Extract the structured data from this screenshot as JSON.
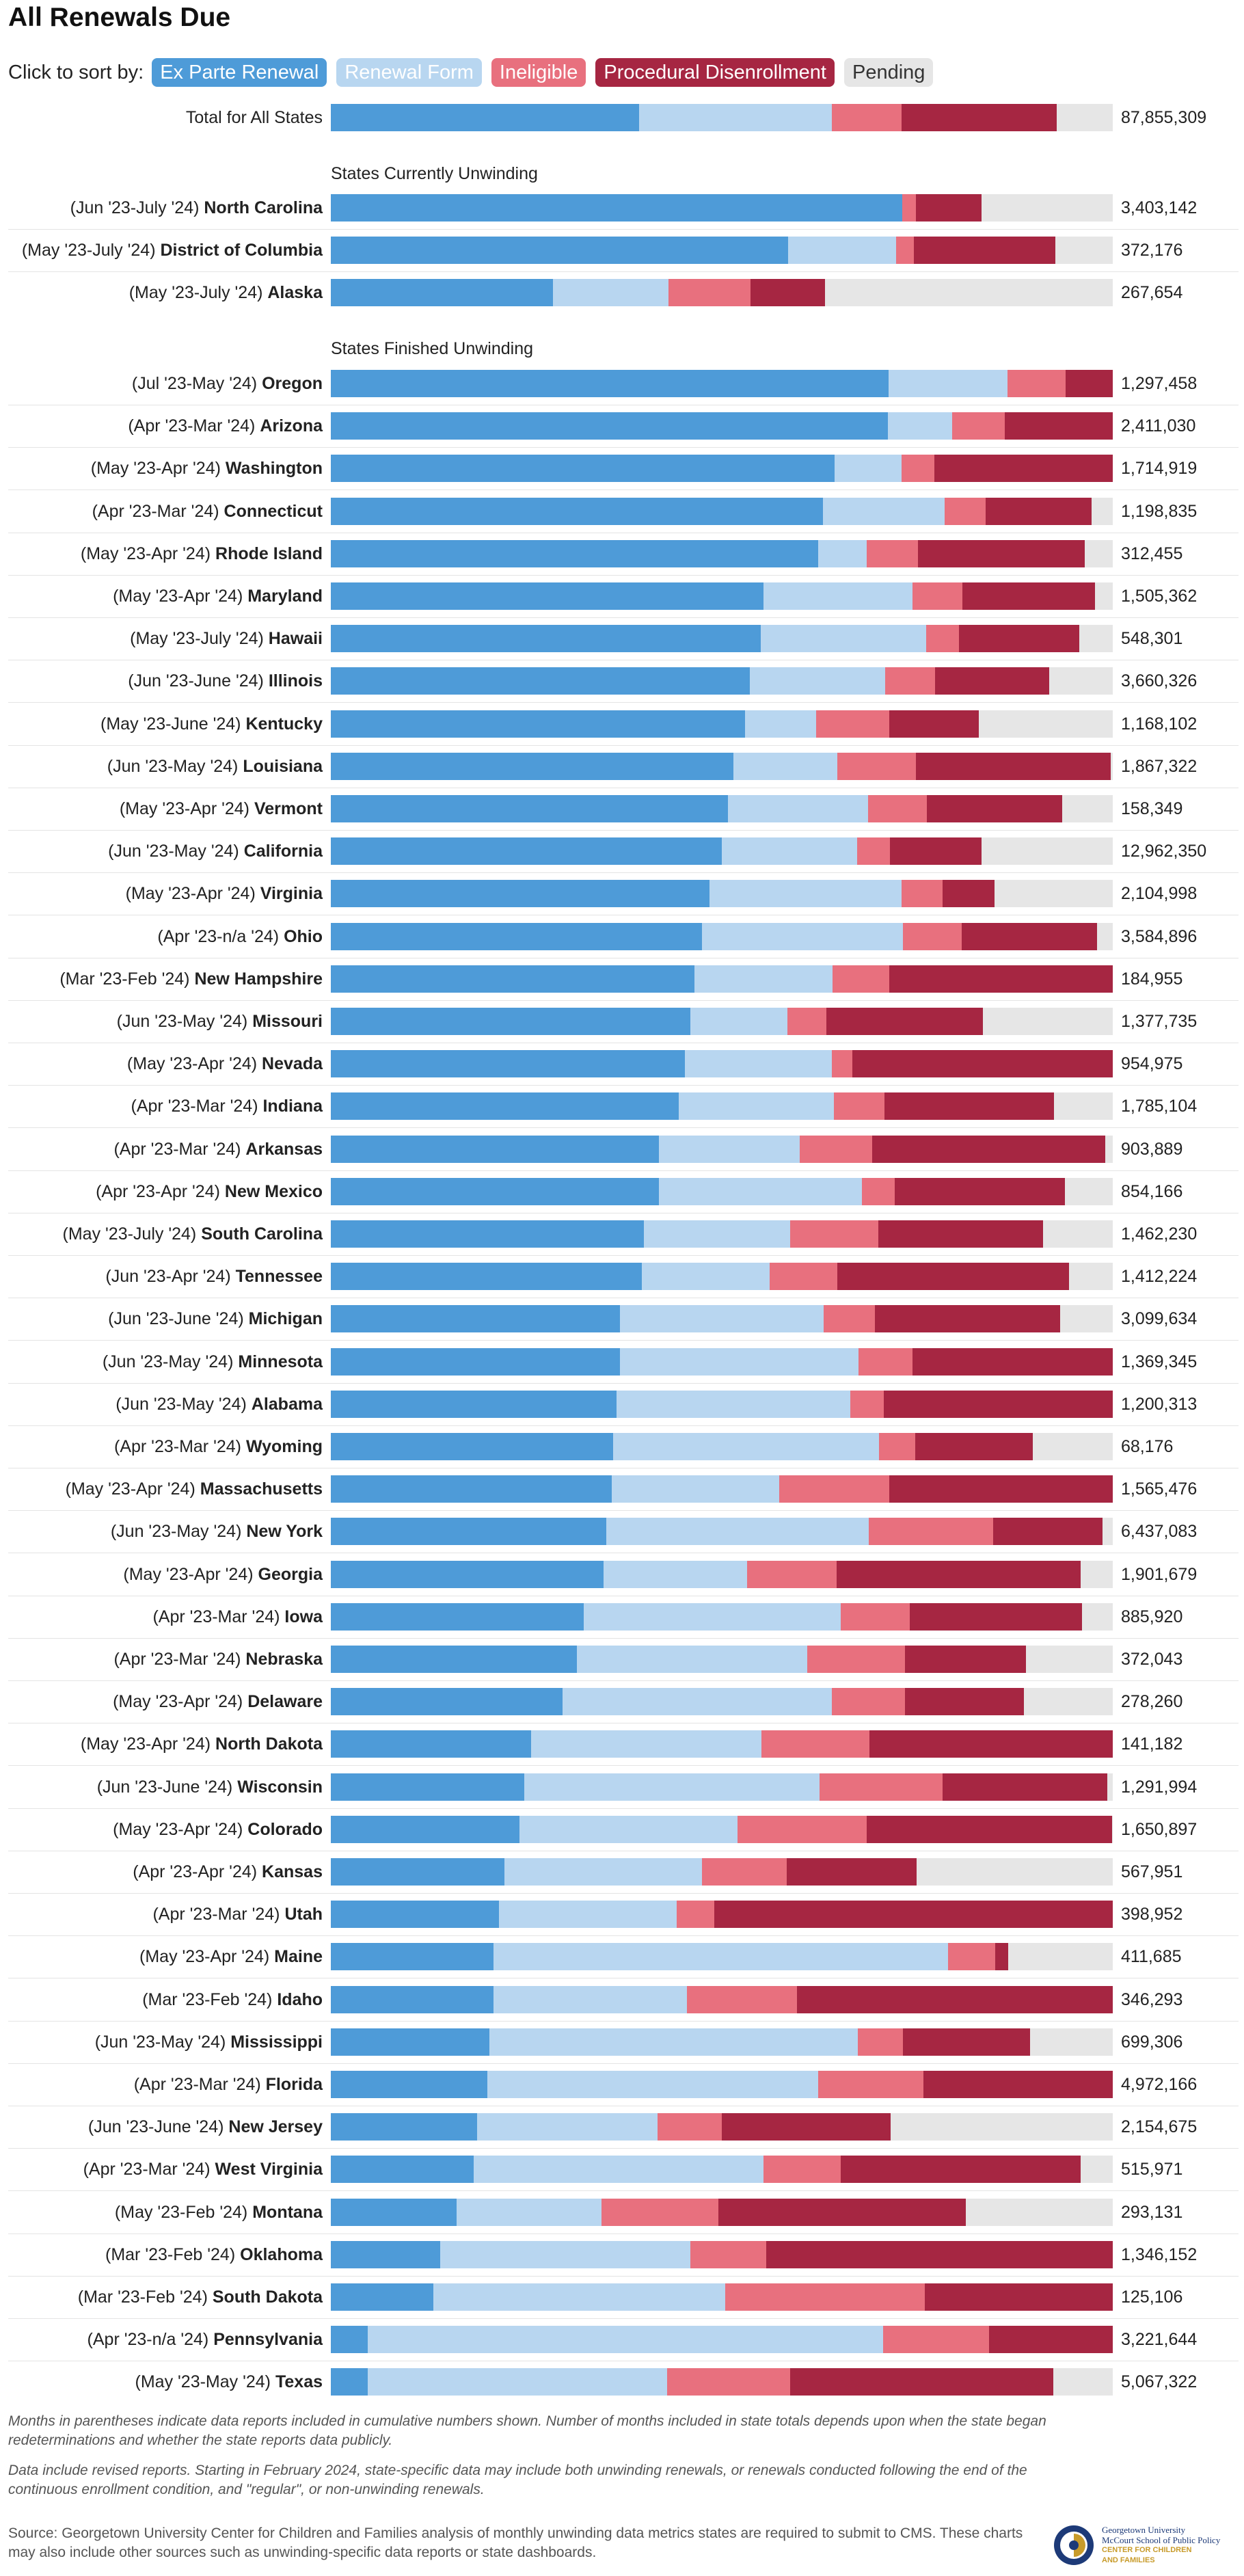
{
  "title": "All Renewals Due",
  "sort": {
    "label": "Click to sort by:",
    "options": [
      {
        "label": "Ex Parte Renewal",
        "bg": "#4e9bd8",
        "fg": "#ffffff"
      },
      {
        "label": "Renewal Form",
        "bg": "#b8d6f0",
        "fg": "#ffffff"
      },
      {
        "label": "Ineligible",
        "bg": "#e8707e",
        "fg": "#ffffff"
      },
      {
        "label": "Procedural Disenrollment",
        "bg": "#a62642",
        "fg": "#ffffff"
      },
      {
        "label": "Pending",
        "bg": "#e6e6e6",
        "fg": "#333333"
      }
    ]
  },
  "colors": [
    "#4e9bd8",
    "#b8d6f0",
    "#e8707e",
    "#a62642",
    "#e6e6e6"
  ],
  "chart_data": {
    "type": "bar",
    "stacked": "percent",
    "series_names": [
      "Ex Parte Renewal",
      "Renewal Form",
      "Ineligible",
      "Procedural Disenrollment",
      "Pending"
    ],
    "total_row": {
      "label": "Total for All States",
      "values": [
        39.4,
        24.7,
        8.9,
        19.8,
        7.2
      ],
      "total": "87,855,309"
    },
    "sections": [
      {
        "title": "States Currently Unwinding",
        "rows": [
          {
            "period": "(Jun '23-July '24)",
            "state": "North Carolina",
            "values": [
              73.1,
              0,
              1.7,
              8.4,
              16.8
            ],
            "total": "3,403,142"
          },
          {
            "period": "(May '23-July '24)",
            "state": "District of Columbia",
            "values": [
              58.5,
              13.8,
              2.3,
              18.1,
              7.3
            ],
            "total": "372,176"
          },
          {
            "period": "(May '23-July '24)",
            "state": "Alaska",
            "values": [
              28.4,
              14.8,
              10.5,
              9.5,
              36.8
            ],
            "total": "267,654"
          }
        ]
      },
      {
        "title": "States Finished Unwinding",
        "rows": [
          {
            "period": "(Jul '23-May '24)",
            "state": "Oregon",
            "values": [
              71.3,
              15.2,
              7.5,
              6.0,
              0
            ],
            "total": "1,297,458"
          },
          {
            "period": "(Apr '23-Mar '24)",
            "state": "Arizona",
            "values": [
              71.2,
              8.3,
              6.7,
              13.8,
              0
            ],
            "total": "2,411,030"
          },
          {
            "period": "(May '23-Apr '24)",
            "state": "Washington",
            "values": [
              64.4,
              8.6,
              4.2,
              22.8,
              0
            ],
            "total": "1,714,919"
          },
          {
            "period": "(Apr '23-Mar '24)",
            "state": "Connecticut",
            "values": [
              62.9,
              15.6,
              5.2,
              13.6,
              2.7
            ],
            "total": "1,198,835"
          },
          {
            "period": "(May '23-Apr '24)",
            "state": "Rhode Island",
            "values": [
              62.3,
              6.2,
              6.6,
              21.3,
              3.6
            ],
            "total": "312,455"
          },
          {
            "period": "(May '23-Apr '24)",
            "state": "Maryland",
            "values": [
              55.3,
              19.1,
              6.4,
              16.9,
              2.3
            ],
            "total": "1,505,362"
          },
          {
            "period": "(May '23-July '24)",
            "state": "Hawaii",
            "values": [
              55.0,
              21.1,
              4.2,
              15.4,
              4.3
            ],
            "total": "548,301"
          },
          {
            "period": "(Jun '23-June '24)",
            "state": "Illinois",
            "values": [
              53.6,
              17.3,
              6.4,
              14.6,
              8.1
            ],
            "total": "3,660,326"
          },
          {
            "period": "(May '23-June '24)",
            "state": "Kentucky",
            "values": [
              53.0,
              9.1,
              9.3,
              11.5,
              17.1
            ],
            "total": "1,168,102"
          },
          {
            "period": "(Jun '23-May '24)",
            "state": "Louisiana",
            "values": [
              51.5,
              13.3,
              10.0,
              24.9,
              0.3
            ],
            "total": "1,867,322"
          },
          {
            "period": "(May '23-Apr '24)",
            "state": "Vermont",
            "values": [
              50.8,
              17.9,
              7.5,
              17.3,
              6.5
            ],
            "total": "158,349"
          },
          {
            "period": "(Jun '23-May '24)",
            "state": "California",
            "values": [
              50.0,
              17.3,
              4.2,
              11.7,
              16.8
            ],
            "total": "12,962,350"
          },
          {
            "period": "(May '23-Apr '24)",
            "state": "Virginia",
            "values": [
              48.4,
              24.6,
              5.2,
              6.7,
              15.1
            ],
            "total": "2,104,998"
          },
          {
            "period": "(Apr '23-n/a '24)",
            "state": "Ohio",
            "values": [
              47.5,
              25.7,
              7.5,
              17.3,
              2.0
            ],
            "total": "3,584,896"
          },
          {
            "period": "(Mar '23-Feb '24)",
            "state": "New Hampshire",
            "values": [
              46.5,
              17.7,
              7.2,
              28.6,
              0
            ],
            "total": "184,955"
          },
          {
            "period": "(Jun '23-May '24)",
            "state": "Missouri",
            "values": [
              46.0,
              12.4,
              5.0,
              20.0,
              16.6
            ],
            "total": "1,377,735"
          },
          {
            "period": "(May '23-Apr '24)",
            "state": "Nevada",
            "values": [
              45.3,
              18.8,
              2.6,
              33.3,
              0
            ],
            "total": "954,975"
          },
          {
            "period": "(Apr '23-Mar '24)",
            "state": "Indiana",
            "values": [
              44.5,
              19.8,
              6.5,
              21.7,
              7.5
            ],
            "total": "1,785,104"
          },
          {
            "period": "(Apr '23-Mar '24)",
            "state": "Arkansas",
            "values": [
              42.0,
              18.0,
              9.2,
              29.8,
              1.0
            ],
            "total": "903,889"
          },
          {
            "period": "(Apr '23-Apr '24)",
            "state": "New Mexico",
            "values": [
              42.0,
              25.9,
              4.2,
              21.8,
              6.1
            ],
            "total": "854,166"
          },
          {
            "period": "(May '23-July '24)",
            "state": "South Carolina",
            "values": [
              40.0,
              18.7,
              11.3,
              21.1,
              8.9
            ],
            "total": "1,462,230"
          },
          {
            "period": "(Jun '23-Apr '24)",
            "state": "Tennessee",
            "values": [
              39.8,
              16.3,
              8.7,
              29.6,
              5.6
            ],
            "total": "1,412,224"
          },
          {
            "period": "(Jun '23-June '24)",
            "state": "Michigan",
            "values": [
              37.0,
              26.0,
              6.6,
              23.7,
              6.7
            ],
            "total": "3,099,634"
          },
          {
            "period": "(Jun '23-May '24)",
            "state": "Minnesota",
            "values": [
              37.0,
              30.5,
              6.9,
              25.6,
              0
            ],
            "total": "1,369,345"
          },
          {
            "period": "(Jun '23-May '24)",
            "state": "Alabama",
            "values": [
              36.5,
              29.9,
              4.3,
              29.3,
              0
            ],
            "total": "1,200,313"
          },
          {
            "period": "(Apr '23-Mar '24)",
            "state": "Wyoming",
            "values": [
              36.1,
              34.0,
              4.6,
              15.1,
              10.2
            ],
            "total": "68,176"
          },
          {
            "period": "(May '23-Apr '24)",
            "state": "Massachusetts",
            "values": [
              35.9,
              21.4,
              14.1,
              28.6,
              0
            ],
            "total": "1,565,476"
          },
          {
            "period": "(Jun '23-May '24)",
            "state": "New York",
            "values": [
              35.2,
              33.6,
              15.9,
              14.0,
              1.3
            ],
            "total": "6,437,083"
          },
          {
            "period": "(May '23-Apr '24)",
            "state": "Georgia",
            "values": [
              34.9,
              18.3,
              11.5,
              31.2,
              4.1
            ],
            "total": "1,901,679"
          },
          {
            "period": "(Apr '23-Mar '24)",
            "state": "Iowa",
            "values": [
              32.3,
              32.9,
              8.8,
              22.1,
              3.9
            ],
            "total": "885,920"
          },
          {
            "period": "(Apr '23-Mar '24)",
            "state": "Nebraska",
            "values": [
              31.5,
              29.4,
              12.5,
              15.5,
              11.1
            ],
            "total": "372,043"
          },
          {
            "period": "(May '23-Apr '24)",
            "state": "Delaware",
            "values": [
              29.6,
              34.5,
              9.3,
              15.2,
              11.4
            ],
            "total": "278,260"
          },
          {
            "period": "(May '23-Apr '24)",
            "state": "North Dakota",
            "values": [
              25.6,
              29.5,
              13.8,
              31.1,
              0
            ],
            "total": "141,182"
          },
          {
            "period": "(Jun '23-June '24)",
            "state": "Wisconsin",
            "values": [
              24.7,
              37.8,
              15.7,
              21.1,
              0.7
            ],
            "total": "1,291,994"
          },
          {
            "period": "(May '23-Apr '24)",
            "state": "Colorado",
            "values": [
              24.1,
              27.9,
              16.5,
              31.4,
              0.1
            ],
            "total": "1,650,897"
          },
          {
            "period": "(Apr '23-Apr '24)",
            "state": "Kansas",
            "values": [
              22.2,
              25.3,
              10.8,
              16.6,
              25.1
            ],
            "total": "567,951"
          },
          {
            "period": "(Apr '23-Mar '24)",
            "state": "Utah",
            "values": [
              21.5,
              22.7,
              4.8,
              51.0,
              0
            ],
            "total": "398,952"
          },
          {
            "period": "(May '23-Apr '24)",
            "state": "Maine",
            "values": [
              20.8,
              58.1,
              6.1,
              1.6,
              13.4
            ],
            "total": "411,685"
          },
          {
            "period": "(Mar '23-Feb '24)",
            "state": "Idaho",
            "values": [
              20.8,
              24.7,
              14.1,
              40.4,
              0
            ],
            "total": "346,293"
          },
          {
            "period": "(Jun '23-May '24)",
            "state": "Mississippi",
            "values": [
              20.3,
              47.1,
              5.8,
              16.2,
              10.6
            ],
            "total": "699,306"
          },
          {
            "period": "(Apr '23-Mar '24)",
            "state": "Florida",
            "values": [
              20.0,
              42.3,
              13.5,
              24.2,
              0
            ],
            "total": "4,972,166"
          },
          {
            "period": "(Jun '23-June '24)",
            "state": "New Jersey",
            "values": [
              18.7,
              23.1,
              8.2,
              21.6,
              28.4
            ],
            "total": "2,154,675"
          },
          {
            "period": "(Apr '23-Mar '24)",
            "state": "West Virginia",
            "values": [
              18.3,
              37.0,
              9.9,
              30.7,
              4.1
            ],
            "total": "515,971"
          },
          {
            "period": "(May '23-Feb '24)",
            "state": "Montana",
            "values": [
              16.1,
              18.5,
              15.0,
              31.6,
              18.8
            ],
            "total": "293,131"
          },
          {
            "period": "(Mar '23-Feb '24)",
            "state": "Oklahoma",
            "values": [
              14.0,
              32.0,
              9.7,
              44.3,
              0
            ],
            "total": "1,346,152"
          },
          {
            "period": "(Mar '23-Feb '24)",
            "state": "South Dakota",
            "values": [
              13.1,
              37.3,
              25.6,
              24.0,
              0
            ],
            "total": "125,106"
          },
          {
            "period": "(Apr '23-n/a '24)",
            "state": "Pennsylvania",
            "values": [
              4.7,
              65.9,
              13.6,
              15.8,
              0
            ],
            "total": "3,221,644"
          },
          {
            "period": "(May '23-May '24)",
            "state": "Texas",
            "values": [
              4.7,
              38.3,
              15.7,
              33.7,
              7.6
            ],
            "total": "5,067,322"
          }
        ]
      }
    ]
  },
  "notes": [
    "Months in parentheses indicate data reports included in cumulative numbers shown. Number of months included in state totals depends upon when the state began redeterminations and whether the state reports data publicly.",
    "Data include revised reports. Starting in February 2024, state-specific data may include both unwinding renewals, or renewals conducted following the end of the continuous enrollment condition, and \"regular\", or non-unwinding renewals."
  ],
  "source": "Source: Georgetown University Center for Children and Families analysis of monthly unwinding data metrics states are required to submit to CMS. These charts may also include other sources such as unwinding-specific data reports or state dashboards.",
  "logo": {
    "line1": "Georgetown University",
    "line2": "McCourt School of Public Policy",
    "line3": "CENTER FOR CHILDREN",
    "line4": "AND FAMILIES"
  }
}
